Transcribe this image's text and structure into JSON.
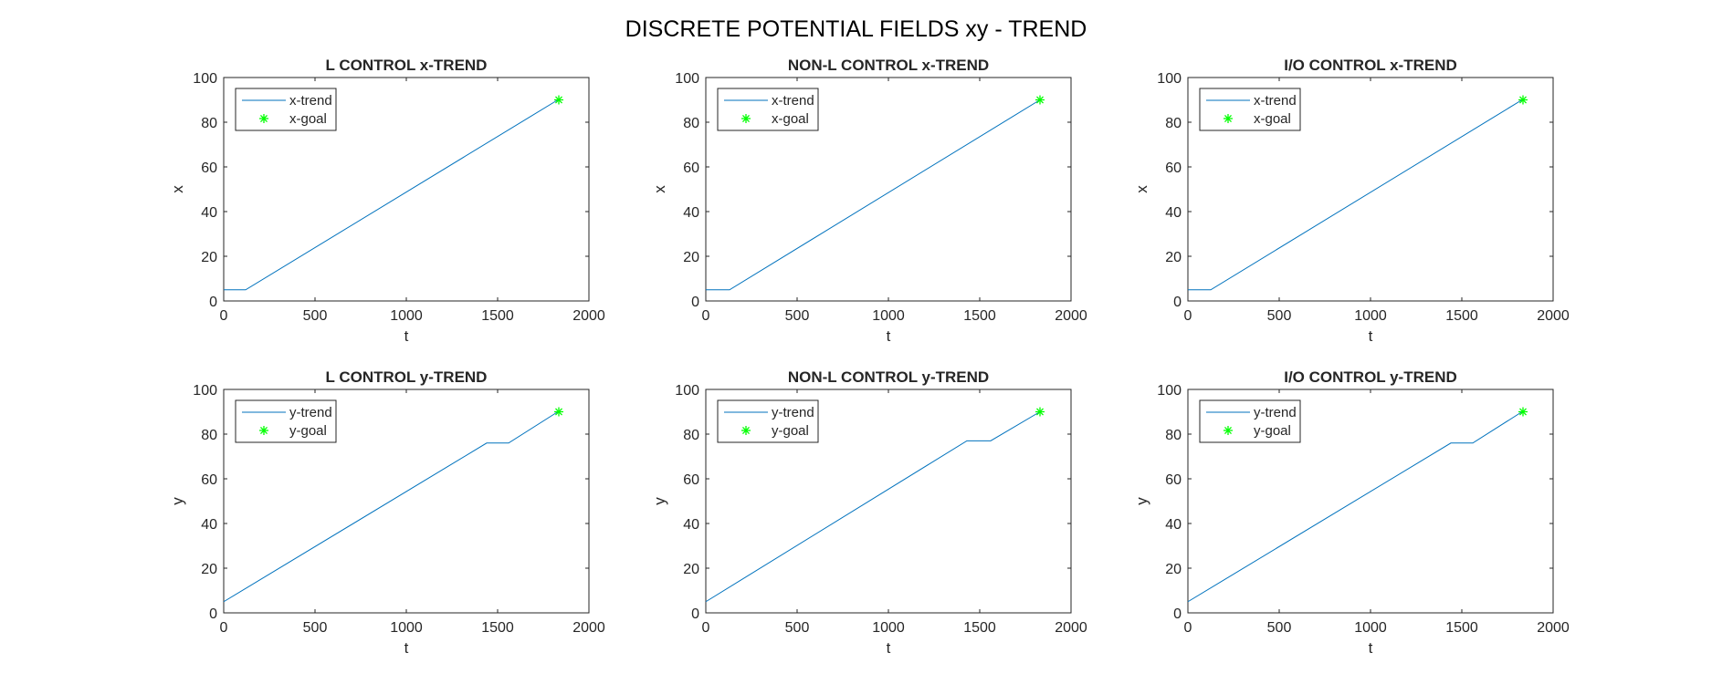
{
  "figure": {
    "title": "DISCRETE POTENTIAL FIELDS xy - TREND"
  },
  "colors": {
    "trend": "#0072bd",
    "goal": "#00ff00",
    "axis": "#262626"
  },
  "chart_data": [
    {
      "type": "line",
      "title": "L CONTROL x-TREND",
      "xlabel": "t",
      "ylabel": "x",
      "xlim": [
        0,
        2000
      ],
      "ylim": [
        0,
        100
      ],
      "xticks": [
        0,
        500,
        1000,
        1500,
        2000
      ],
      "yticks": [
        0,
        20,
        40,
        60,
        80,
        100
      ],
      "legend_position": "top-left",
      "series": [
        {
          "name": "x-trend",
          "style": "line",
          "x": [
            0,
            120,
            1830
          ],
          "y": [
            5,
            5,
            90
          ]
        },
        {
          "name": "x-goal",
          "style": "marker",
          "x": [
            1835
          ],
          "y": [
            90
          ]
        }
      ]
    },
    {
      "type": "line",
      "title": "NON-L CONTROL x-TREND",
      "xlabel": "t",
      "ylabel": "x",
      "xlim": [
        0,
        2000
      ],
      "ylim": [
        0,
        100
      ],
      "xticks": [
        0,
        500,
        1000,
        1500,
        2000
      ],
      "yticks": [
        0,
        20,
        40,
        60,
        80,
        100
      ],
      "legend_position": "top-left",
      "series": [
        {
          "name": "x-trend",
          "style": "line",
          "x": [
            0,
            130,
            1830
          ],
          "y": [
            5,
            5,
            90
          ]
        },
        {
          "name": "x-goal",
          "style": "marker",
          "x": [
            1830
          ],
          "y": [
            90
          ]
        }
      ]
    },
    {
      "type": "line",
      "title": "I/O CONTROL x-TREND",
      "xlabel": "t",
      "ylabel": "x",
      "xlim": [
        0,
        2000
      ],
      "ylim": [
        0,
        100
      ],
      "xticks": [
        0,
        500,
        1000,
        1500,
        2000
      ],
      "yticks": [
        0,
        20,
        40,
        60,
        80,
        100
      ],
      "legend_position": "top-left",
      "series": [
        {
          "name": "x-trend",
          "style": "line",
          "x": [
            0,
            125,
            1830
          ],
          "y": [
            5,
            5,
            90
          ]
        },
        {
          "name": "x-goal",
          "style": "marker",
          "x": [
            1835
          ],
          "y": [
            90
          ]
        }
      ]
    },
    {
      "type": "line",
      "title": "L CONTROL y-TREND",
      "xlabel": "t",
      "ylabel": "y",
      "xlim": [
        0,
        2000
      ],
      "ylim": [
        0,
        100
      ],
      "xticks": [
        0,
        500,
        1000,
        1500,
        2000
      ],
      "yticks": [
        0,
        20,
        40,
        60,
        80,
        100
      ],
      "legend_position": "top-left",
      "series": [
        {
          "name": "y-trend",
          "style": "line",
          "x": [
            0,
            1440,
            1560,
            1830
          ],
          "y": [
            5,
            76,
            76,
            90
          ]
        },
        {
          "name": "y-goal",
          "style": "marker",
          "x": [
            1835
          ],
          "y": [
            90
          ]
        }
      ]
    },
    {
      "type": "line",
      "title": "NON-L CONTROL y-TREND",
      "xlabel": "t",
      "ylabel": "y",
      "xlim": [
        0,
        2000
      ],
      "ylim": [
        0,
        100
      ],
      "xticks": [
        0,
        500,
        1000,
        1500,
        2000
      ],
      "yticks": [
        0,
        20,
        40,
        60,
        80,
        100
      ],
      "legend_position": "top-left",
      "series": [
        {
          "name": "y-trend",
          "style": "line",
          "x": [
            0,
            1430,
            1560,
            1830
          ],
          "y": [
            5,
            77,
            77,
            90
          ]
        },
        {
          "name": "y-goal",
          "style": "marker",
          "x": [
            1830
          ],
          "y": [
            90
          ]
        }
      ]
    },
    {
      "type": "line",
      "title": "I/O CONTROL y-TREND",
      "xlabel": "t",
      "ylabel": "y",
      "xlim": [
        0,
        2000
      ],
      "ylim": [
        0,
        100
      ],
      "xticks": [
        0,
        500,
        1000,
        1500,
        2000
      ],
      "yticks": [
        0,
        20,
        40,
        60,
        80,
        100
      ],
      "legend_position": "top-left",
      "series": [
        {
          "name": "y-trend",
          "style": "line",
          "x": [
            0,
            1440,
            1560,
            1830
          ],
          "y": [
            5,
            76,
            76,
            90
          ]
        },
        {
          "name": "y-goal",
          "style": "marker",
          "x": [
            1835
          ],
          "y": [
            90
          ]
        }
      ]
    }
  ]
}
